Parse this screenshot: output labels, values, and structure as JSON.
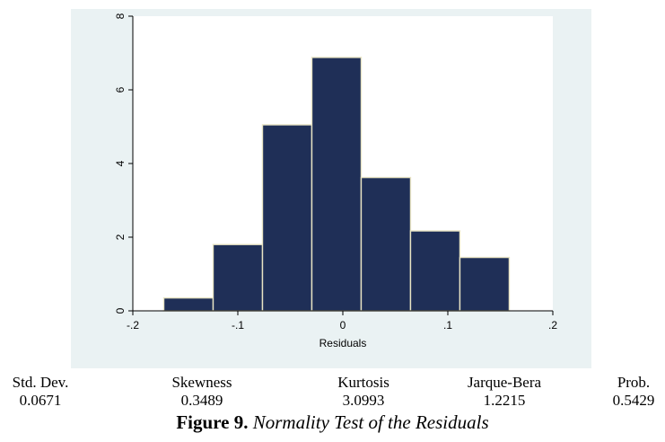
{
  "chart_data": {
    "type": "bar",
    "subtype": "histogram",
    "bins": [
      {
        "from": -0.1705,
        "to": -0.1235,
        "height": 0.35
      },
      {
        "from": -0.1235,
        "to": -0.0765,
        "height": 1.8
      },
      {
        "from": -0.0765,
        "to": -0.0295,
        "height": 5.05
      },
      {
        "from": -0.0295,
        "to": 0.0175,
        "height": 6.88
      },
      {
        "from": 0.0175,
        "to": 0.0645,
        "height": 3.62
      },
      {
        "from": 0.0645,
        "to": 0.1115,
        "height": 2.17
      },
      {
        "from": 0.1115,
        "to": 0.1585,
        "height": 1.45
      }
    ],
    "xlim": [
      -0.2,
      0.2
    ],
    "ylim": [
      0,
      8
    ],
    "x_ticks": [
      {
        "value": -0.2,
        "label": "-.2"
      },
      {
        "value": -0.1,
        "label": "-.1"
      },
      {
        "value": 0,
        "label": "0"
      },
      {
        "value": 0.1,
        "label": ".1"
      },
      {
        "value": 0.2,
        "label": ".2"
      }
    ],
    "y_ticks": [
      {
        "value": 0,
        "label": "0"
      },
      {
        "value": 2,
        "label": "2"
      },
      {
        "value": 4,
        "label": "4"
      },
      {
        "value": 6,
        "label": "6"
      },
      {
        "value": 8,
        "label": "8"
      }
    ],
    "xlabel": "Residuals",
    "ylabel": "",
    "title": "",
    "grid": false,
    "colors": {
      "bar_fill": "#1f2f57",
      "bar_stroke": "#e8e4c4",
      "panel": "#eaf2f3",
      "plot": "#ffffff"
    }
  },
  "stats": [
    {
      "label": "Std. Dev.",
      "value": "0.0671"
    },
    {
      "label": "Skewness",
      "value": "0.3489"
    },
    {
      "label": "Kurtosis",
      "value": "3.0993"
    },
    {
      "label": "Jarque-Bera",
      "value": "1.2215"
    },
    {
      "label": "Prob.",
      "value": "0.5429"
    }
  ],
  "caption": {
    "label": "Figure 9.",
    "text": "Normality Test of the Residuals"
  }
}
